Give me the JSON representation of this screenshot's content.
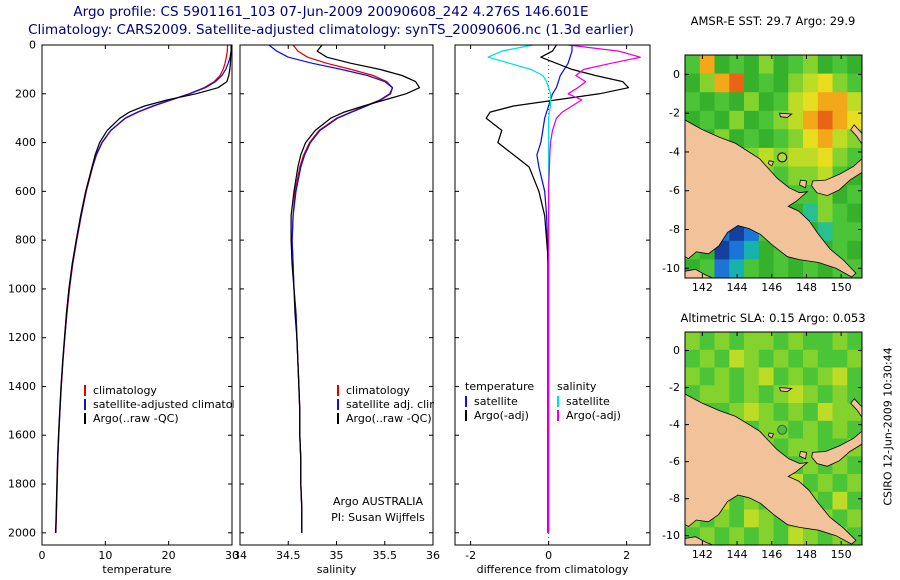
{
  "header": {
    "title": "Argo profile: CS 5901161_103 07-Jun-2009 20090608_242 4.276S 146.601E",
    "subtitle": "Climatology: CARS2009. Satellite-adjusted climatology: synTS_20090606.nc (1.3d earlier)",
    "title_color": "#000080"
  },
  "footer_note": {
    "line1": "Argo AUSTRALIA",
    "line2": "PI: Susan Wijffels"
  },
  "side_note": "CSIRO 12-Jun-2009 10:30:44",
  "chart_data": {
    "type": "line",
    "description": "Argo float QC profile plots: temperature, salinity, difference-from-climatology vs depth, plus AMSR-E SST and altimetric SLA heatmaps",
    "depth_m": [
      0,
      25,
      50,
      75,
      100,
      125,
      150,
      175,
      200,
      225,
      250,
      275,
      300,
      350,
      400,
      450,
      500,
      600,
      700,
      800,
      900,
      1000,
      1100,
      1200,
      1300,
      1400,
      1500,
      1600,
      1700,
      1800,
      1900,
      2000
    ],
    "ylim": [
      0,
      2050
    ],
    "yticks": [
      0,
      200,
      400,
      600,
      800,
      1000,
      1200,
      1400,
      1600,
      1800,
      2000
    ],
    "panels": [
      {
        "name": "temperature",
        "xlabel": "temperature",
        "xlim": [
          0,
          30
        ],
        "xticks": [
          0,
          10,
          20,
          30
        ],
        "show_ylabels": true,
        "zero_line": false,
        "series": [
          {
            "name": "climatology",
            "color": "#e00000",
            "values": [
              29.3,
              29.25,
              29.1,
              28.9,
              28.6,
              28.1,
              27.2,
              25.6,
              23.2,
              20.4,
              17.6,
              15.2,
              13.2,
              10.9,
              9.5,
              8.6,
              8.0,
              7.0,
              6.2,
              5.5,
              4.85,
              4.35,
              3.95,
              3.6,
              3.3,
              3.05,
              2.85,
              2.65,
              2.5,
              2.4,
              2.3,
              2.2
            ]
          },
          {
            "name": "satellite-adjusted climatology",
            "color": "#1010d8",
            "values": [
              29.9,
              29.85,
              29.7,
              29.4,
              29.0,
              28.4,
              27.4,
              25.8,
              23.3,
              20.4,
              17.5,
              15.1,
              13.1,
              10.85,
              9.45,
              8.55,
              7.95,
              6.95,
              6.15,
              5.45,
              4.8,
              4.3,
              3.9,
              3.58,
              3.28,
              3.03,
              2.83,
              2.63,
              2.48,
              2.38,
              2.28,
              2.18
            ]
          },
          {
            "name": "Argo(..raw -QC)",
            "color": "#000000",
            "values": [
              29.85,
              29.85,
              29.8,
              29.75,
              29.65,
              29.5,
              29.2,
              27.8,
              24.3,
              19.8,
              16.2,
              13.8,
              12.3,
              10.3,
              9.1,
              8.4,
              7.9,
              6.9,
              6.1,
              5.4,
              4.75,
              4.25,
              3.85,
              3.55,
              3.25,
              3.0,
              2.8,
              2.6,
              2.45,
              2.35,
              2.25,
              2.15
            ]
          }
        ]
      },
      {
        "name": "salinity",
        "xlabel": "salinity",
        "xlim": [
          34,
          36
        ],
        "xticks": [
          34,
          34.5,
          35,
          35.5,
          36
        ],
        "show_ylabels": false,
        "zero_line": false,
        "series": [
          {
            "name": "climatology",
            "color": "#e00000",
            "values": [
              34.55,
              34.6,
              34.7,
              34.9,
              35.15,
              35.38,
              35.52,
              35.58,
              35.55,
              35.45,
              35.3,
              35.15,
              35.0,
              34.82,
              34.72,
              34.66,
              34.62,
              34.57,
              34.55,
              34.54,
              34.55,
              34.56,
              34.58,
              34.59,
              34.6,
              34.61,
              34.62,
              34.62,
              34.63,
              34.63,
              34.64,
              34.64
            ]
          },
          {
            "name": "satellite adj. clim.",
            "color": "#1010d8",
            "values": [
              34.3,
              34.38,
              34.5,
              34.75,
              35.05,
              35.32,
              35.5,
              35.58,
              35.56,
              35.46,
              35.31,
              35.16,
              35.01,
              34.83,
              34.73,
              34.67,
              34.63,
              34.58,
              34.55,
              34.54,
              34.55,
              34.56,
              34.58,
              34.59,
              34.6,
              34.61,
              34.62,
              34.62,
              34.63,
              34.63,
              34.64,
              34.64
            ]
          },
          {
            "name": "Argo(..raw -QC)",
            "color": "#000000",
            "values": [
              34.85,
              34.8,
              34.9,
              35.15,
              35.45,
              35.68,
              35.82,
              35.86,
              35.72,
              35.5,
              35.28,
              35.08,
              34.94,
              34.78,
              34.68,
              34.63,
              34.6,
              34.56,
              34.53,
              34.53,
              34.54,
              34.56,
              34.57,
              34.59,
              34.6,
              34.61,
              34.62,
              34.62,
              34.63,
              34.63,
              34.64,
              34.64
            ]
          }
        ]
      },
      {
        "name": "difference",
        "xlabel": "difference from climatology",
        "xlim": [
          -2.4,
          2.6
        ],
        "xticks": [
          -2,
          0,
          2
        ],
        "show_ylabels": false,
        "zero_line": true,
        "series": [
          {
            "name": "temperature satellite",
            "color": "#1010d8",
            "values": [
              0.6,
              0.6,
              0.55,
              0.5,
              0.4,
              0.3,
              0.25,
              0.2,
              0.1,
              0.05,
              0.0,
              -0.05,
              -0.1,
              -0.15,
              -0.2,
              -0.3,
              -0.25,
              -0.1,
              -0.05,
              -0.03,
              -0.02,
              -0.02,
              -0.02,
              -0.02,
              -0.02,
              -0.02,
              -0.02,
              -0.02,
              -0.02,
              -0.02,
              -0.02,
              -0.02
            ]
          },
          {
            "name": "temperature Argo(-adj)",
            "color": "#000000",
            "values": [
              0.2,
              0.1,
              -0.2,
              0.2,
              0.6,
              1.2,
              1.9,
              2.05,
              1.3,
              0.2,
              -0.9,
              -1.5,
              -1.6,
              -1.2,
              -1.3,
              -0.9,
              -0.5,
              -0.25,
              -0.1,
              -0.05,
              0,
              0,
              0,
              0,
              0,
              0,
              0,
              0,
              0,
              0,
              0,
              0
            ]
          },
          {
            "name": "salinity satellite",
            "color": "#00dede",
            "values": [
              -0.4,
              -1.2,
              -1.55,
              -1.0,
              -0.45,
              -0.15,
              -0.05,
              0,
              0.05,
              0.05,
              0.05,
              0.02,
              0,
              0,
              0,
              0,
              0,
              0,
              0,
              0,
              0,
              0,
              0,
              0,
              0,
              0,
              0,
              0,
              0,
              0,
              0,
              0
            ]
          },
          {
            "name": "salinity Argo(-adj)",
            "color": "#e400e4",
            "values": [
              0.5,
              1.8,
              2.35,
              1.6,
              0.9,
              0.7,
              0.95,
              0.75,
              0.5,
              0.85,
              0.6,
              0.35,
              0.2,
              0.1,
              0.05,
              0.03,
              0.02,
              0,
              0,
              0,
              0,
              0,
              0,
              0,
              0,
              0,
              0,
              0,
              0,
              0,
              0,
              0
            ]
          }
        ]
      }
    ],
    "legend3": {
      "col1": {
        "header": "temperature",
        "items": [
          {
            "label": "satellite",
            "color": "#1010d8"
          },
          {
            "label": "Argo(-adj)",
            "color": "#000000"
          }
        ]
      },
      "col2": {
        "header": "salinity",
        "items": [
          {
            "label": "satellite",
            "color": "#00dede"
          },
          {
            "label": "Argo(-adj)",
            "color": "#e400e4"
          }
        ]
      }
    },
    "map_palette": {
      "a": "#35b12c",
      "b": "#4cc437",
      "c": "#84d22e",
      "d": "#bcdc26",
      "e": "#e8de20",
      "f": "#f2a818",
      "g": "#ea6418",
      "h": "#18b2ae",
      "i": "#1b74d6",
      "j": "#14409e",
      "m": "#28c08e"
    },
    "land_color": "#f2c29b",
    "land_polygons": [
      [
        [
          141,
          -2.35
        ],
        [
          142.0,
          -2.85
        ],
        [
          143.0,
          -3.25
        ],
        [
          143.9,
          -3.55
        ],
        [
          144.6,
          -3.95
        ],
        [
          145.3,
          -4.35
        ],
        [
          145.8,
          -4.85
        ],
        [
          146.3,
          -5.35
        ],
        [
          147.0,
          -5.85
        ],
        [
          147.6,
          -6.1
        ],
        [
          148.05,
          -6.05
        ],
        [
          147.4,
          -6.55
        ],
        [
          146.95,
          -6.8
        ],
        [
          147.55,
          -7.05
        ],
        [
          148.15,
          -7.55
        ],
        [
          148.65,
          -8.2
        ],
        [
          149.35,
          -9.0
        ],
        [
          150.15,
          -9.6
        ],
        [
          150.85,
          -10.25
        ],
        [
          150.6,
          -10.45
        ],
        [
          149.7,
          -10.0
        ],
        [
          148.7,
          -9.7
        ],
        [
          147.6,
          -9.55
        ],
        [
          146.9,
          -9.4
        ],
        [
          146.1,
          -8.85
        ],
        [
          145.35,
          -8.25
        ],
        [
          144.7,
          -7.95
        ],
        [
          144.05,
          -7.8
        ],
        [
          143.45,
          -8.15
        ],
        [
          142.95,
          -8.85
        ],
        [
          142.35,
          -9.25
        ],
        [
          141.65,
          -9.15
        ],
        [
          141.2,
          -9.5
        ],
        [
          141,
          -9.4
        ]
      ],
      [
        [
          141.0,
          -10.5
        ],
        [
          141.0,
          -10.15
        ],
        [
          141.6,
          -10.05
        ],
        [
          142.2,
          -10.35
        ],
        [
          142.6,
          -10.5
        ]
      ],
      [
        [
          148.35,
          -5.5
        ],
        [
          149.1,
          -5.45
        ],
        [
          149.9,
          -5.15
        ],
        [
          150.7,
          -4.75
        ],
        [
          151.2,
          -4.35
        ],
        [
          151.2,
          -5.05
        ],
        [
          150.5,
          -5.45
        ],
        [
          149.9,
          -5.95
        ],
        [
          149.2,
          -6.25
        ],
        [
          148.6,
          -6.1
        ],
        [
          148.3,
          -5.75
        ]
      ],
      [
        [
          150.75,
          -2.6
        ],
        [
          151.2,
          -3.05
        ],
        [
          151.2,
          -3.6
        ],
        [
          150.9,
          -3.2
        ],
        [
          150.55,
          -2.85
        ]
      ],
      [
        [
          147.65,
          -5.45
        ],
        [
          148.0,
          -5.5
        ],
        [
          147.95,
          -5.85
        ],
        [
          147.6,
          -5.7
        ]
      ],
      [
        [
          145.85,
          -4.45
        ],
        [
          146.1,
          -4.5
        ],
        [
          146.0,
          -4.72
        ],
        [
          145.8,
          -4.6
        ]
      ],
      [
        [
          146.45,
          -2.0
        ],
        [
          147.15,
          -2.05
        ],
        [
          146.9,
          -2.22
        ],
        [
          146.5,
          -2.18
        ]
      ]
    ],
    "maps": [
      {
        "title": "AMSR-E SST: 29.7 Argo: 29.9",
        "lon_range": [
          141,
          151.2
        ],
        "lat_range": [
          1,
          -10.5
        ],
        "xticks": [
          142,
          144,
          146,
          148,
          150
        ],
        "yticks": [
          0,
          -2,
          -4,
          -6,
          -8,
          -10
        ],
        "marker": {
          "lon": 146.6,
          "lat": -4.28,
          "fill": "#b4d83e",
          "stroke": "#222222"
        },
        "grid": [
          "bfabacabcaba",
          "acfgabacdecb",
          "babacabdeffd",
          "abacabcdfgfe",
          "bacababcefdc",
          "ababcdcddecb",
          "bababcbccdba",
          "ababababbcab",
          "bahibabamcba",
          "abijibabambb",
          "bajihabababa",
          "abihbabababb"
        ]
      },
      {
        "title": "Altimetric SLA: 0.15 Argo: 0.053",
        "lon_range": [
          141,
          151.2
        ],
        "lat_range": [
          1,
          -10.5
        ],
        "xticks": [
          142,
          144,
          146,
          148,
          150
        ],
        "yticks": [
          0,
          -2,
          -4,
          -6,
          -8,
          -10
        ],
        "marker": {
          "lon": 146.6,
          "lat": -4.28,
          "fill": "#52bb45",
          "stroke": "#2c7a2c"
        },
        "grid": [
          "cbcbccbcbbcb",
          "bcbdcbcbcbbc",
          "cbcbcdbcbcdb",
          "bccbcbcdcbcb",
          "cbbcdcbcbdcc",
          "bcbcbccbcbcb",
          "cbdcbcbccbbc",
          "bcbcbdcbcbcb",
          "cbcbcbcdbcbc",
          "bcdbcbcbcbdb",
          "cbcbdcbcbcbc",
          "bcbcbcbdcbcb"
        ]
      }
    ]
  }
}
